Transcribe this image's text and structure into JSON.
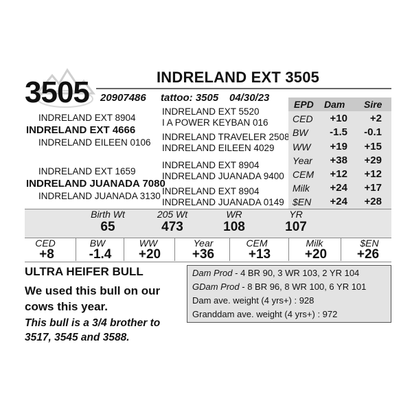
{
  "header": {
    "lot": "3505",
    "name": "INDRELAND EXT 3505",
    "reg_no": "20907486",
    "tattoo": "tattoo: 3505",
    "dob": "04/30/23"
  },
  "pedigree": {
    "sire": "INDRELAND EXT 4666",
    "sire_sire": "INDRELAND EXT 8904",
    "sire_dam": "INDRELAND EILEEN 0106",
    "sire_sire_sire": "INDRELAND EXT 5520",
    "sire_sire_dam": "I A POWER KEYBAN 016",
    "sire_dam_sire": "INDRELAND TRAVELER 2508",
    "sire_dam_dam": "INDRELAND EILEEN 4029",
    "dam": "INDRELAND JUANADA 7080",
    "dam_sire": "INDRELAND EXT 1659",
    "dam_dam": "INDRELAND JUANADA 3130",
    "dam_sire_sire": "INDRELAND EXT 8904",
    "dam_sire_dam": "INDRELAND JUANADA 9400",
    "dam_dam_sire": "INDRELAND EXT 8904",
    "dam_dam_dam": "INDRELAND JUANADA 0149"
  },
  "parent_epd": {
    "headers": [
      "EPD",
      "Dam",
      "Sire"
    ],
    "rows": [
      {
        "label": "CED",
        "dam": "+10",
        "sire": "+2"
      },
      {
        "label": "BW",
        "dam": "-1.5",
        "sire": "-0.1"
      },
      {
        "label": "WW",
        "dam": "+19",
        "sire": "+15"
      },
      {
        "label": "Year",
        "dam": "+38",
        "sire": "+29"
      },
      {
        "label": "CEM",
        "dam": "+12",
        "sire": "+12"
      },
      {
        "label": "Milk",
        "dam": "+24",
        "sire": "+17"
      },
      {
        "label": "$EN",
        "dam": "+24",
        "sire": "+28"
      }
    ]
  },
  "actuals": {
    "headers": [
      "Birth Wt",
      "205 Wt",
      "WR",
      "YR"
    ],
    "values": [
      "65",
      "473",
      "108",
      "107"
    ]
  },
  "calf_epd": {
    "headers": [
      "CED",
      "BW",
      "WW",
      "Year",
      "CEM",
      "Milk",
      "$EN"
    ],
    "values": [
      "+8",
      "-1.4",
      "+20",
      "+36",
      "+13",
      "+20",
      "+26"
    ]
  },
  "remarks": {
    "heading": "ULTRA HEIFER BULL",
    "comment": "We used this bull on our cows this year.",
    "note": "This bull is a 3/4 brother to 3517, 3545 and 3588."
  },
  "production": {
    "dam_prod_label": "Dam Prod",
    "dam_prod": " - 4 BR 90, 3 WR 103, 2 YR 104",
    "gdam_prod_label": "GDam Prod",
    "gdam_prod": " - 8 BR 96, 8 WR 100, 6 YR 101",
    "dam_weight": "Dam ave. weight (4 yrs+) : 928",
    "gdam_weight": "Granddam ave. weight (4 yrs+) : 972"
  }
}
